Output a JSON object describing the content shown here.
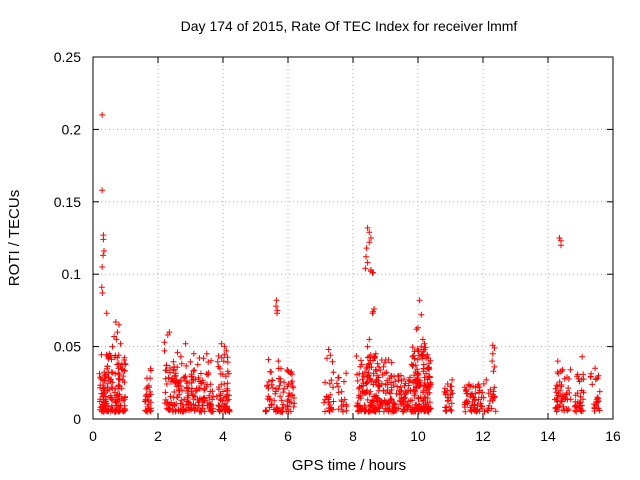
{
  "chart_data": {
    "type": "scatter",
    "title": "Day 174 of 2015, Rate Of TEC Index for receiver lmmf",
    "xlabel": "GPS time / hours",
    "ylabel": "ROTI / TECUs",
    "xlim": [
      0,
      16
    ],
    "ylim": [
      0,
      0.25
    ],
    "xticks": [
      0,
      2,
      4,
      6,
      8,
      10,
      12,
      14,
      16
    ],
    "yticks": [
      0,
      0.05,
      0.1,
      0.15,
      0.2,
      0.25
    ],
    "xtick_labels": [
      "0",
      "2",
      "4",
      "6",
      "8",
      "10",
      "12",
      "14",
      "16"
    ],
    "ytick_labels": [
      "0",
      "0.05",
      "0.1",
      "0.15",
      "0.2",
      "0.25"
    ],
    "grid": true,
    "marker": "+",
    "color": "#ff0000",
    "clusters": [
      {
        "x_range": [
          0.2,
          1.0
        ],
        "y_range": [
          0.005,
          0.045
        ],
        "count": 160
      },
      {
        "x_range": [
          1.6,
          1.8
        ],
        "y_range": [
          0.005,
          0.035
        ],
        "count": 30
      },
      {
        "x_range": [
          2.2,
          3.0
        ],
        "y_range": [
          0.005,
          0.04
        ],
        "count": 110
      },
      {
        "x_range": [
          3.0,
          3.7
        ],
        "y_range": [
          0.005,
          0.045
        ],
        "count": 90
      },
      {
        "x_range": [
          3.8,
          4.2
        ],
        "y_range": [
          0.005,
          0.045
        ],
        "count": 60
      },
      {
        "x_range": [
          5.3,
          5.6
        ],
        "y_range": [
          0.005,
          0.035
        ],
        "count": 25
      },
      {
        "x_range": [
          5.6,
          6.2
        ],
        "y_range": [
          0.005,
          0.035
        ],
        "count": 60
      },
      {
        "x_range": [
          7.1,
          7.4
        ],
        "y_range": [
          0.005,
          0.04
        ],
        "count": 25
      },
      {
        "x_range": [
          7.5,
          7.8
        ],
        "y_range": [
          0.005,
          0.035
        ],
        "count": 20
      },
      {
        "x_range": [
          8.1,
          9.2
        ],
        "y_range": [
          0.005,
          0.045
        ],
        "count": 180
      },
      {
        "x_range": [
          9.2,
          9.8
        ],
        "y_range": [
          0.005,
          0.03
        ],
        "count": 70
      },
      {
        "x_range": [
          9.8,
          10.4
        ],
        "y_range": [
          0.005,
          0.05
        ],
        "count": 150
      },
      {
        "x_range": [
          10.8,
          11.1
        ],
        "y_range": [
          0.005,
          0.025
        ],
        "count": 25
      },
      {
        "x_range": [
          11.4,
          12.4
        ],
        "y_range": [
          0.005,
          0.025
        ],
        "count": 80
      },
      {
        "x_range": [
          14.2,
          14.7
        ],
        "y_range": [
          0.005,
          0.035
        ],
        "count": 50
      },
      {
        "x_range": [
          14.8,
          15.1
        ],
        "y_range": [
          0.005,
          0.035
        ],
        "count": 30
      },
      {
        "x_range": [
          15.3,
          15.6
        ],
        "y_range": [
          0.005,
          0.035
        ],
        "count": 25
      }
    ],
    "points": [
      [
        0.28,
        0.21
      ],
      [
        0.28,
        0.158
      ],
      [
        0.32,
        0.127
      ],
      [
        0.32,
        0.124
      ],
      [
        0.34,
        0.116
      ],
      [
        0.31,
        0.113
      ],
      [
        0.28,
        0.105
      ],
      [
        0.27,
        0.091
      ],
      [
        0.29,
        0.087
      ],
      [
        0.42,
        0.073
      ],
      [
        0.7,
        0.067
      ],
      [
        0.8,
        0.065
      ],
      [
        0.75,
        0.06
      ],
      [
        0.65,
        0.057
      ],
      [
        0.72,
        0.055
      ],
      [
        0.85,
        0.052
      ],
      [
        0.6,
        0.05
      ],
      [
        0.5,
        0.045
      ],
      [
        2.35,
        0.06
      ],
      [
        2.3,
        0.058
      ],
      [
        2.2,
        0.053
      ],
      [
        2.6,
        0.046
      ],
      [
        2.85,
        0.052
      ],
      [
        2.7,
        0.043
      ],
      [
        2.2,
        0.047
      ],
      [
        3.1,
        0.045
      ],
      [
        3.5,
        0.045
      ],
      [
        3.4,
        0.042
      ],
      [
        3.95,
        0.052
      ],
      [
        4.05,
        0.05
      ],
      [
        4.1,
        0.047
      ],
      [
        5.4,
        0.041
      ],
      [
        5.65,
        0.082
      ],
      [
        5.63,
        0.078
      ],
      [
        5.67,
        0.075
      ],
      [
        5.66,
        0.073
      ],
      [
        5.7,
        0.04
      ],
      [
        7.25,
        0.048
      ],
      [
        7.3,
        0.044
      ],
      [
        7.2,
        0.042
      ],
      [
        8.45,
        0.132
      ],
      [
        8.5,
        0.129
      ],
      [
        8.55,
        0.125
      ],
      [
        8.5,
        0.122
      ],
      [
        8.42,
        0.118
      ],
      [
        8.4,
        0.112
      ],
      [
        8.45,
        0.108
      ],
      [
        8.38,
        0.104
      ],
      [
        8.55,
        0.103
      ],
      [
        8.6,
        0.101
      ],
      [
        8.62,
        0.101
      ],
      [
        8.55,
        0.102
      ],
      [
        8.65,
        0.076
      ],
      [
        8.6,
        0.073
      ],
      [
        8.62,
        0.074
      ],
      [
        8.5,
        0.055
      ],
      [
        8.45,
        0.05
      ],
      [
        8.7,
        0.045
      ],
      [
        8.5,
        0.043
      ],
      [
        10.05,
        0.082
      ],
      [
        10.1,
        0.072
      ],
      [
        10.0,
        0.063
      ],
      [
        9.95,
        0.062
      ],
      [
        10.15,
        0.055
      ],
      [
        10.2,
        0.052
      ],
      [
        10.1,
        0.05
      ],
      [
        10.0,
        0.047
      ],
      [
        10.25,
        0.043
      ],
      [
        12.3,
        0.051
      ],
      [
        12.35,
        0.049
      ],
      [
        12.3,
        0.045
      ],
      [
        12.28,
        0.04
      ],
      [
        12.35,
        0.036
      ],
      [
        12.32,
        0.033
      ],
      [
        12.1,
        0.027
      ],
      [
        14.35,
        0.125
      ],
      [
        14.4,
        0.123
      ],
      [
        14.4,
        0.12
      ],
      [
        14.3,
        0.04
      ],
      [
        15.05,
        0.043
      ],
      [
        14.45,
        0.034
      ],
      [
        15.45,
        0.035
      ],
      [
        11.05,
        0.027
      ]
    ]
  }
}
